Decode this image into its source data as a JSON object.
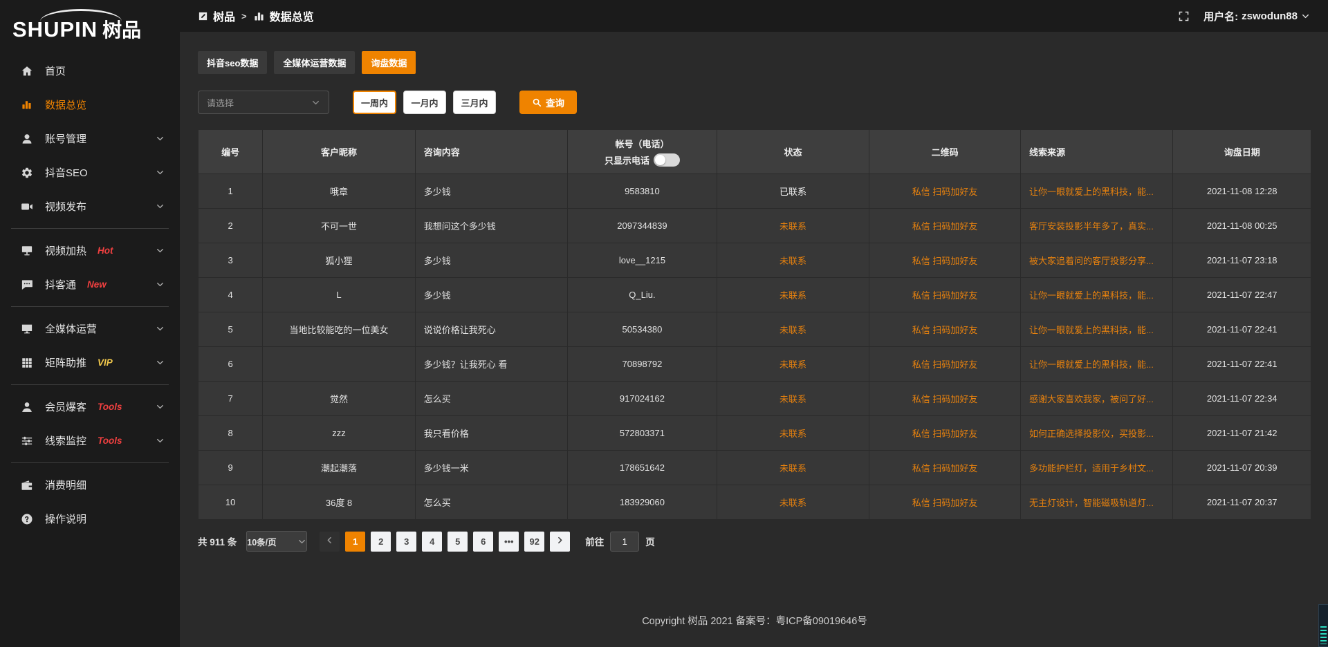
{
  "colors": {
    "accent": "#ef8300",
    "link_orange": "#e8820e",
    "badge_red": "#f24040",
    "badge_yellow": "#f2c94c"
  },
  "brand": {
    "logo_en": "SHUPIN",
    "logo_cn": "树品"
  },
  "sidebar": {
    "items": [
      {
        "type": "item",
        "key": "home",
        "icon": "home-icon",
        "label": "首页"
      },
      {
        "type": "item",
        "key": "data-overview",
        "icon": "bar-chart-icon",
        "label": "数据总览",
        "active": true
      },
      {
        "type": "item",
        "key": "account-manage",
        "icon": "user-icon",
        "label": "账号管理",
        "chevron": true
      },
      {
        "type": "item",
        "key": "douyin-seo",
        "icon": "gear-icon",
        "label": "抖音SEO",
        "chevron": true
      },
      {
        "type": "item",
        "key": "video-publish",
        "icon": "video-icon",
        "label": "视频发布",
        "chevron": true
      },
      {
        "type": "divider"
      },
      {
        "type": "item",
        "key": "video-heat",
        "icon": "board-icon",
        "label": "视频加热",
        "badge": "Hot",
        "badge_color": "#f24040",
        "chevron": true
      },
      {
        "type": "item",
        "key": "douketong",
        "icon": "chat-icon",
        "label": "抖客通",
        "badge": "New",
        "badge_color": "#f24040",
        "chevron": true
      },
      {
        "type": "divider"
      },
      {
        "type": "item",
        "key": "omni-media",
        "icon": "monitor-icon",
        "label": "全媒体运营",
        "chevron": true
      },
      {
        "type": "item",
        "key": "matrix-boost",
        "icon": "grid-icon",
        "label": "矩阵助推",
        "badge": "VIP",
        "badge_color": "#f2c94c",
        "chevron": true
      },
      {
        "type": "divider"
      },
      {
        "type": "item",
        "key": "member-burst",
        "icon": "member-icon",
        "label": "会员爆客",
        "badge": "Tools",
        "badge_color": "#f24040",
        "chevron": true
      },
      {
        "type": "item",
        "key": "clue-monitor",
        "icon": "sliders-icon",
        "label": "线索监控",
        "badge": "Tools",
        "badge_color": "#f24040",
        "chevron": true
      },
      {
        "type": "divider"
      },
      {
        "type": "item",
        "key": "consume-detail",
        "icon": "wallet-icon",
        "label": "消费明细"
      },
      {
        "type": "item",
        "key": "operation-guide",
        "icon": "question-icon",
        "label": "操作说明"
      }
    ]
  },
  "header": {
    "breadcrumb_root": "树品",
    "breadcrumb_sep": ">",
    "breadcrumb_current": "数据总览",
    "username_label": "用户名:",
    "username": "zswodun88"
  },
  "tabs": [
    {
      "label": "抖音seo数据",
      "active": false
    },
    {
      "label": "全媒体运营数据",
      "active": false
    },
    {
      "label": "询盘数据",
      "active": true
    }
  ],
  "filters": {
    "select_placeholder": "请选择",
    "periods": [
      {
        "label": "一周内",
        "active": true
      },
      {
        "label": "一月内",
        "active": false
      },
      {
        "label": "三月内",
        "active": false
      }
    ],
    "search_label": "查询"
  },
  "table": {
    "columns": [
      "编号",
      "客户昵称",
      "咨询内容",
      "帐号（电话）",
      "状态",
      "二维码",
      "线索来源",
      "询盘日期"
    ],
    "phone_toggle_label": "只显示电话",
    "phone_toggle_on": false,
    "rows": [
      {
        "id": "1",
        "nickname": "哦章",
        "content": "多少钱",
        "account": "9583810",
        "status": "已联系",
        "contacted": true,
        "qrcode": "私信 扫码加好友",
        "source": "让你一眼就爱上的黑科技，能...",
        "date": "2021-11-08 12:28"
      },
      {
        "id": "2",
        "nickname": "不可一世",
        "content": "我想问这个多少钱",
        "account": "2097344839",
        "status": "未联系",
        "contacted": false,
        "qrcode": "私信 扫码加好友",
        "source": "客厅安装投影半年多了，真实...",
        "date": "2021-11-08 00:25"
      },
      {
        "id": "3",
        "nickname": "狐小狸",
        "content": "多少钱",
        "account": "love__1215",
        "status": "未联系",
        "contacted": false,
        "qrcode": "私信 扫码加好友",
        "source": "被大家追着问的客厅投影分享...",
        "date": "2021-11-07 23:18"
      },
      {
        "id": "4",
        "nickname": "L",
        "content": "多少钱",
        "account": "Q_Liu.",
        "status": "未联系",
        "contacted": false,
        "qrcode": "私信 扫码加好友",
        "source": "让你一眼就爱上的黑科技，能...",
        "date": "2021-11-07 22:47"
      },
      {
        "id": "5",
        "nickname": "当地比较能吃的一位美女",
        "content": "说说价格让我死心",
        "account": "50534380",
        "status": "未联系",
        "contacted": false,
        "qrcode": "私信 扫码加好友",
        "source": "让你一眼就爱上的黑科技，能...",
        "date": "2021-11-07 22:41"
      },
      {
        "id": "6",
        "nickname": "",
        "content": "多少钱？让我死心 看",
        "account": "70898792",
        "status": "未联系",
        "contacted": false,
        "qrcode": "私信 扫码加好友",
        "source": "让你一眼就爱上的黑科技，能...",
        "date": "2021-11-07 22:41"
      },
      {
        "id": "7",
        "nickname": "觉然",
        "content": "怎么买",
        "account": "917024162",
        "status": "未联系",
        "contacted": false,
        "qrcode": "私信 扫码加好友",
        "source": "感谢大家喜欢我家，被问了好...",
        "date": "2021-11-07 22:34"
      },
      {
        "id": "8",
        "nickname": "zzz",
        "content": "我只看价格",
        "account": "572803371",
        "status": "未联系",
        "contacted": false,
        "qrcode": "私信 扫码加好友",
        "source": "如何正确选择投影仪，买投影...",
        "date": "2021-11-07 21:42"
      },
      {
        "id": "9",
        "nickname": "潮起潮落",
        "content": "多少钱一米",
        "account": "178651642",
        "status": "未联系",
        "contacted": false,
        "qrcode": "私信 扫码加好友",
        "source": "多功能护栏灯，适用于乡村文...",
        "date": "2021-11-07 20:39"
      },
      {
        "id": "10",
        "nickname": "36度 8",
        "content": "怎么买",
        "account": "183929060",
        "status": "未联系",
        "contacted": false,
        "qrcode": "私信 扫码加好友",
        "source": "无主灯设计，智能磁吸轨道灯...",
        "date": "2021-11-07 20:37"
      }
    ]
  },
  "pagination": {
    "total": "共 911 条",
    "page_size": "10条/页",
    "pages": [
      {
        "label": "1",
        "active": true
      },
      {
        "label": "2"
      },
      {
        "label": "3"
      },
      {
        "label": "4"
      },
      {
        "label": "5"
      },
      {
        "label": "6"
      },
      {
        "label": "•••",
        "ellipsis": true
      },
      {
        "label": "92"
      }
    ],
    "goto_label": "前往",
    "goto_value": "1",
    "page_label": "页"
  },
  "footer": {
    "copyright": "Copyright 树品 2021 备案号：粤ICP备09019646号"
  }
}
